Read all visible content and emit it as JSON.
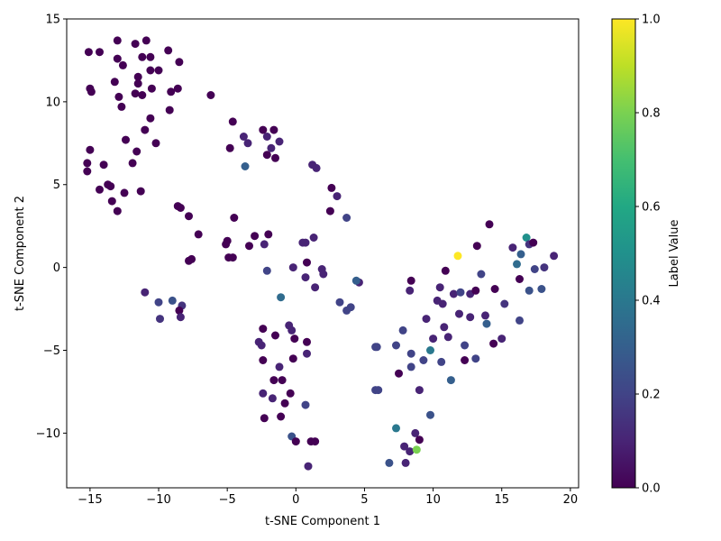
{
  "chart_data": {
    "type": "scatter",
    "title": "",
    "xlabel": "t-SNE Component 1",
    "ylabel": "t-SNE Component 2",
    "xlim": [
      -16.7,
      20.6
    ],
    "ylim": [
      -13.3,
      15.0
    ],
    "xticks": [
      -15,
      -10,
      -5,
      0,
      5,
      10,
      15,
      20
    ],
    "yticks": [
      -10,
      -5,
      0,
      5,
      10,
      15
    ],
    "grid": false,
    "colormap": "viridis",
    "colorbar": {
      "label": "Label Value",
      "range": [
        0,
        1
      ],
      "ticks": [
        "0.0",
        "0.2",
        "0.4",
        "0.6",
        "0.8",
        "1.0"
      ]
    },
    "points": [
      [
        -15.1,
        13.0,
        0.0
      ],
      [
        -14.3,
        13.0,
        0.0
      ],
      [
        -13.0,
        13.7,
        0.0
      ],
      [
        -11.7,
        13.5,
        0.0
      ],
      [
        -10.9,
        13.7,
        0.0
      ],
      [
        -9.3,
        13.1,
        0.0
      ],
      [
        -13.0,
        12.6,
        0.0
      ],
      [
        -12.6,
        12.2,
        0.0
      ],
      [
        -11.2,
        12.7,
        0.0
      ],
      [
        -10.6,
        12.7,
        0.0
      ],
      [
        -8.5,
        12.4,
        0.0
      ],
      [
        -10.6,
        11.9,
        0.0
      ],
      [
        -10.0,
        11.9,
        0.0
      ],
      [
        -11.5,
        11.5,
        0.0
      ],
      [
        -11.5,
        11.1,
        0.0
      ],
      [
        -13.2,
        11.2,
        0.0
      ],
      [
        -15.0,
        10.8,
        0.0
      ],
      [
        -14.9,
        10.6,
        0.0
      ],
      [
        -12.9,
        10.3,
        0.0
      ],
      [
        -11.7,
        10.5,
        0.0
      ],
      [
        -11.2,
        10.4,
        0.0
      ],
      [
        -10.5,
        10.8,
        0.0
      ],
      [
        -9.1,
        10.6,
        0.0
      ],
      [
        -8.6,
        10.8,
        0.0
      ],
      [
        -6.2,
        10.4,
        0.0
      ],
      [
        -12.7,
        9.7,
        0.0
      ],
      [
        -9.2,
        9.5,
        0.0
      ],
      [
        -10.6,
        9.0,
        0.0
      ],
      [
        -11.0,
        8.3,
        0.0
      ],
      [
        -12.4,
        7.7,
        0.0
      ],
      [
        -10.2,
        7.5,
        0.0
      ],
      [
        -15.0,
        7.1,
        0.0
      ],
      [
        -11.6,
        7.0,
        0.0
      ],
      [
        -15.2,
        6.3,
        0.0
      ],
      [
        -14.0,
        6.2,
        0.0
      ],
      [
        -11.9,
        6.3,
        0.0
      ],
      [
        -15.2,
        5.8,
        0.0
      ],
      [
        -14.3,
        4.7,
        0.0
      ],
      [
        -13.7,
        5.0,
        0.0
      ],
      [
        -13.5,
        4.9,
        0.0
      ],
      [
        -12.5,
        4.5,
        0.0
      ],
      [
        -11.3,
        4.6,
        0.0
      ],
      [
        -13.4,
        4.0,
        0.0
      ],
      [
        -13.0,
        3.4,
        0.0
      ],
      [
        -8.6,
        3.7,
        0.0
      ],
      [
        -8.4,
        3.6,
        0.0
      ],
      [
        -7.8,
        3.1,
        0.0
      ],
      [
        -4.6,
        8.8,
        0.0
      ],
      [
        -2.4,
        8.3,
        0.0
      ],
      [
        -1.6,
        8.3,
        0.0
      ],
      [
        -3.8,
        7.9,
        0.1
      ],
      [
        -2.1,
        7.9,
        0.1
      ],
      [
        -1.2,
        7.6,
        0.1
      ],
      [
        -3.5,
        7.5,
        0.1
      ],
      [
        -4.8,
        7.2,
        0.0
      ],
      [
        -1.8,
        7.2,
        0.1
      ],
      [
        -2.1,
        6.8,
        0.0
      ],
      [
        -1.5,
        6.6,
        0.0
      ],
      [
        -3.7,
        6.1,
        0.3
      ],
      [
        1.2,
        6.2,
        0.1
      ],
      [
        1.5,
        6.0,
        0.1
      ],
      [
        2.6,
        4.8,
        0.0
      ],
      [
        3.0,
        4.3,
        0.1
      ],
      [
        2.5,
        3.4,
        0.0
      ],
      [
        3.7,
        3.0,
        0.2
      ],
      [
        -4.5,
        3.0,
        0.0
      ],
      [
        -7.1,
        2.0,
        0.0
      ],
      [
        -3.0,
        1.9,
        0.0
      ],
      [
        -2.0,
        2.0,
        0.0
      ],
      [
        -5.0,
        1.6,
        0.0
      ],
      [
        -5.1,
        1.4,
        0.0
      ],
      [
        -3.4,
        1.3,
        0.0
      ],
      [
        -2.3,
        1.4,
        0.1
      ],
      [
        -7.8,
        0.4,
        0.0
      ],
      [
        -7.6,
        0.5,
        0.0
      ],
      [
        -4.9,
        0.6,
        0.0
      ],
      [
        -4.6,
        0.6,
        0.0
      ],
      [
        0.5,
        1.5,
        0.1
      ],
      [
        0.7,
        1.5,
        0.1
      ],
      [
        1.3,
        1.8,
        0.1
      ],
      [
        0.8,
        0.3,
        0.0
      ],
      [
        -0.2,
        0.0,
        0.1
      ],
      [
        -2.1,
        -0.2,
        0.2
      ],
      [
        1.9,
        -0.1,
        0.1
      ],
      [
        2.0,
        -0.4,
        0.1
      ],
      [
        0.7,
        -0.6,
        0.1
      ],
      [
        1.4,
        -1.2,
        0.1
      ],
      [
        -1.1,
        -1.8,
        0.35
      ],
      [
        -11.0,
        -1.5,
        0.1
      ],
      [
        -10.0,
        -2.1,
        0.2
      ],
      [
        -9.0,
        -2.0,
        0.25
      ],
      [
        -8.3,
        -2.3,
        0.15
      ],
      [
        -8.5,
        -2.6,
        0.0
      ],
      [
        -8.4,
        -3.0,
        0.1
      ],
      [
        -9.9,
        -3.1,
        0.15
      ],
      [
        3.2,
        -2.1,
        0.2
      ],
      [
        4.0,
        -2.4,
        0.2
      ],
      [
        3.7,
        -2.6,
        0.2
      ],
      [
        4.6,
        -0.9,
        0.1
      ],
      [
        4.4,
        -0.8,
        0.3
      ],
      [
        -2.4,
        -3.7,
        0.0
      ],
      [
        -0.5,
        -3.5,
        0.1
      ],
      [
        -0.3,
        -3.8,
        0.1
      ],
      [
        -1.5,
        -4.1,
        0.0
      ],
      [
        -0.1,
        -4.3,
        0.0
      ],
      [
        -2.7,
        -4.5,
        0.1
      ],
      [
        -2.5,
        -4.7,
        0.1
      ],
      [
        0.8,
        -4.5,
        0.0
      ],
      [
        0.8,
        -5.2,
        0.1
      ],
      [
        -0.2,
        -5.5,
        0.0
      ],
      [
        -2.4,
        -5.6,
        0.0
      ],
      [
        -1.2,
        -6.0,
        0.1
      ],
      [
        -1.6,
        -6.8,
        0.0
      ],
      [
        -1.0,
        -6.8,
        0.0
      ],
      [
        -2.4,
        -7.6,
        0.1
      ],
      [
        -0.4,
        -7.6,
        0.0
      ],
      [
        -1.7,
        -7.9,
        0.1
      ],
      [
        -0.8,
        -8.2,
        0.0
      ],
      [
        0.7,
        -8.3,
        0.2
      ],
      [
        -1.1,
        -9.0,
        0.0
      ],
      [
        -2.3,
        -9.1,
        0.0
      ],
      [
        -0.3,
        -10.2,
        0.25
      ],
      [
        0.0,
        -10.5,
        0.0
      ],
      [
        1.1,
        -10.5,
        0.0
      ],
      [
        1.4,
        -10.5,
        0.0
      ],
      [
        0.9,
        -12.0,
        0.1
      ],
      [
        10.9,
        -0.2,
        0.0
      ],
      [
        11.8,
        0.7,
        1.0
      ],
      [
        13.2,
        1.3,
        0.0
      ],
      [
        14.1,
        2.6,
        0.0
      ],
      [
        8.4,
        -0.8,
        0.0
      ],
      [
        10.5,
        -1.2,
        0.1
      ],
      [
        11.5,
        -1.6,
        0.1
      ],
      [
        12.0,
        -1.5,
        0.2
      ],
      [
        12.7,
        -1.6,
        0.1
      ],
      [
        13.1,
        -1.4,
        0.0
      ],
      [
        13.5,
        -0.4,
        0.2
      ],
      [
        14.5,
        -1.3,
        0.0
      ],
      [
        8.3,
        -1.4,
        0.1
      ],
      [
        10.3,
        -2.0,
        0.1
      ],
      [
        10.7,
        -2.2,
        0.1
      ],
      [
        11.9,
        -2.8,
        0.1
      ],
      [
        12.7,
        -3.0,
        0.1
      ],
      [
        13.8,
        -2.9,
        0.1
      ],
      [
        15.2,
        -2.2,
        0.15
      ],
      [
        9.5,
        -3.1,
        0.1
      ],
      [
        10.8,
        -3.6,
        0.1
      ],
      [
        11.1,
        -4.2,
        0.1
      ],
      [
        10.0,
        -4.3,
        0.1
      ],
      [
        13.9,
        -3.4,
        0.3
      ],
      [
        15.8,
        1.2,
        0.1
      ],
      [
        16.4,
        0.8,
        0.3
      ],
      [
        16.8,
        1.8,
        0.5
      ],
      [
        17.0,
        1.4,
        0.15
      ],
      [
        17.3,
        1.5,
        0.0
      ],
      [
        18.8,
        0.7,
        0.1
      ],
      [
        16.1,
        0.2,
        0.35
      ],
      [
        17.4,
        -0.1,
        0.2
      ],
      [
        18.1,
        0.0,
        0.15
      ],
      [
        16.3,
        -0.7,
        0.0
      ],
      [
        17.0,
        -1.4,
        0.25
      ],
      [
        17.9,
        -1.3,
        0.25
      ],
      [
        16.3,
        -3.2,
        0.2
      ],
      [
        15.0,
        -4.3,
        0.1
      ],
      [
        14.4,
        -4.6,
        0.0
      ],
      [
        12.3,
        -4.7,
        0.2
      ],
      [
        7.8,
        -3.8,
        0.2
      ],
      [
        5.8,
        -4.8,
        0.2
      ],
      [
        5.9,
        -4.8,
        0.2
      ],
      [
        7.3,
        -4.7,
        0.2
      ],
      [
        8.4,
        -5.2,
        0.2
      ],
      [
        9.3,
        -5.6,
        0.2
      ],
      [
        9.8,
        -5.0,
        0.4
      ],
      [
        10.6,
        -5.7,
        0.2
      ],
      [
        12.3,
        -5.6,
        0.0
      ],
      [
        13.1,
        -5.5,
        0.2
      ],
      [
        8.4,
        -6.0,
        0.2
      ],
      [
        7.5,
        -6.4,
        0.0
      ],
      [
        11.3,
        -6.8,
        0.3
      ],
      [
        5.8,
        -7.4,
        0.2
      ],
      [
        6.0,
        -7.4,
        0.2
      ],
      [
        9.0,
        -7.4,
        0.1
      ],
      [
        9.8,
        -8.9,
        0.25
      ],
      [
        7.3,
        -9.7,
        0.4
      ],
      [
        8.7,
        -10.0,
        0.1
      ],
      [
        9.0,
        -10.4,
        0.0
      ],
      [
        7.9,
        -10.8,
        0.1
      ],
      [
        8.3,
        -11.1,
        0.1
      ],
      [
        8.8,
        -11.0,
        0.8
      ],
      [
        6.8,
        -11.8,
        0.25
      ],
      [
        8.0,
        -11.8,
        0.1
      ]
    ]
  }
}
